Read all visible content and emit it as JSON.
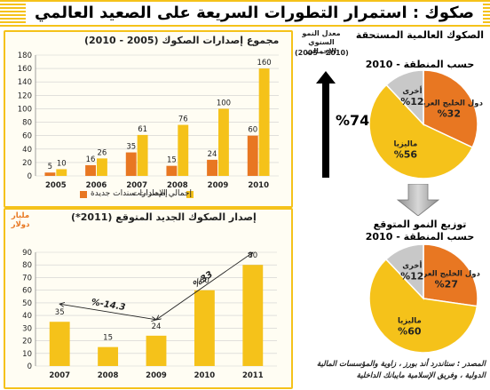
{
  "header": {
    "title": "صكوك : استمرار التطورات السريعة على الصعيد العالمي"
  },
  "chart_data": [
    {
      "id": "issuance",
      "type": "bar",
      "title": "مجموع إصدارات الصكوك (2005 - 2010)",
      "categories": [
        "2005",
        "2006",
        "2007",
        "2008",
        "2009",
        "2010"
      ],
      "series": [
        {
          "name": "إصدارات سندات جديدة",
          "color": "#e87722",
          "values": [
            5,
            16,
            35,
            15,
            24,
            60
          ]
        },
        {
          "name": "إجمالي الإصدارات",
          "color": "#f5c21a",
          "values": [
            10,
            26,
            61,
            76,
            100,
            160
          ]
        }
      ],
      "ylim": [
        0,
        180
      ],
      "yticks": [
        0,
        20,
        40,
        60,
        80,
        100,
        120,
        140,
        160,
        180
      ],
      "grid": true
    },
    {
      "id": "new_issuance",
      "type": "bar",
      "title": "إصدار الصكوك الجديد المتوقع (2011*)",
      "ylabel": "مليار دولار",
      "categories": [
        "2007",
        "2008",
        "2009",
        "2010",
        "2011"
      ],
      "values": [
        35,
        15,
        24,
        60,
        80
      ],
      "color": "#f5c21a",
      "ylim": [
        0,
        90
      ],
      "yticks": [
        0,
        10,
        20,
        30,
        40,
        50,
        60,
        70,
        80,
        90
      ],
      "grid": true,
      "annotations": [
        {
          "text": "%-14.3",
          "from": "2007",
          "to": "2009"
        },
        {
          "text": "%33",
          "from": "2009",
          "to": "2011"
        }
      ]
    },
    {
      "id": "outstanding_region",
      "type": "pie",
      "title": "الصكوك العالمية المستحقة",
      "subtitle": "حسب المنطقة - 2010",
      "slices": [
        {
          "label": "دول الخليج العربي",
          "value": 32,
          "text": "%32",
          "color": "#e87722"
        },
        {
          "label": "ماليزيا",
          "value": 56,
          "text": "%56",
          "color": "#f5c21a"
        },
        {
          "label": "أخرى",
          "value": 12,
          "text": "%12",
          "color": "#c8c8c8"
        }
      ]
    },
    {
      "id": "growth_region",
      "type": "pie",
      "title": "توزيع النمو المتوقع",
      "subtitle": "حسب المنطقة - 2010",
      "slices": [
        {
          "label": "دول الخليج العربي",
          "value": 27,
          "text": "%27",
          "color": "#e87722"
        },
        {
          "label": "ماليزيا",
          "value": 60,
          "text": "%60",
          "color": "#f5c21a"
        },
        {
          "label": "أخرى",
          "value": 12,
          "text": "%12",
          "color": "#c8c8c8"
        }
      ]
    }
  ],
  "growth": {
    "label": "معدل النمو السنوي الإجمالي",
    "period": "(2005 - 2010)",
    "value": "%74"
  },
  "source": {
    "line1": "المصدر : ستاندرد أند بورز ، زاوية والمؤسسات المالية",
    "line2": "الدولية ، وفريق الإسلامية مايبانك الداخلية"
  }
}
